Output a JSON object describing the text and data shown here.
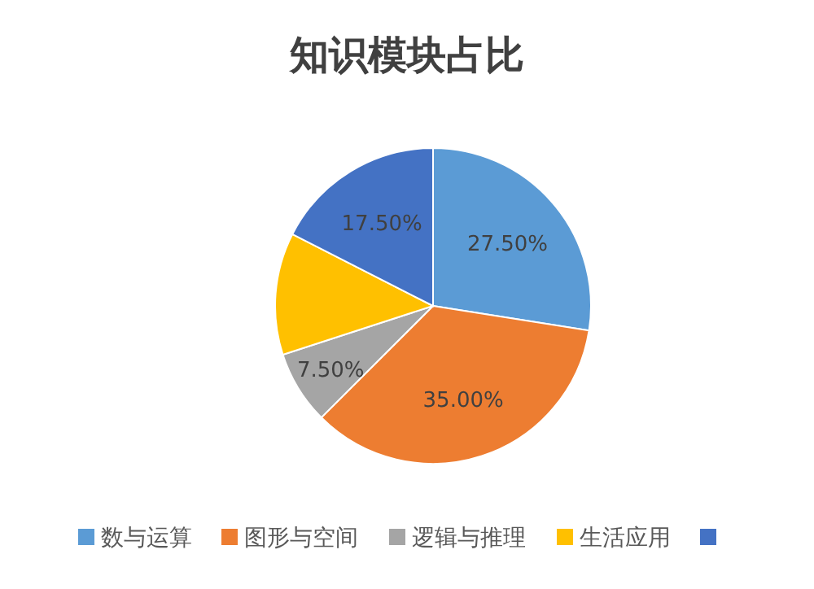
{
  "chart_data": {
    "type": "pie",
    "title": "知识模块占比",
    "categories": [
      "数与运算",
      "图形与空间",
      "逻辑与推理",
      "生活应用",
      null
    ],
    "values": [
      27.5,
      35,
      7.5,
      12.5,
      17.5
    ],
    "colors": [
      "#5b9bd5",
      "#ed7d31",
      "#a5a5a5",
      "#ffc000",
      "#4472c4"
    ],
    "value_labels": [
      "27.50%",
      "35.00%",
      "7.50%",
      null,
      "17.50%"
    ],
    "legend": "bottom"
  }
}
